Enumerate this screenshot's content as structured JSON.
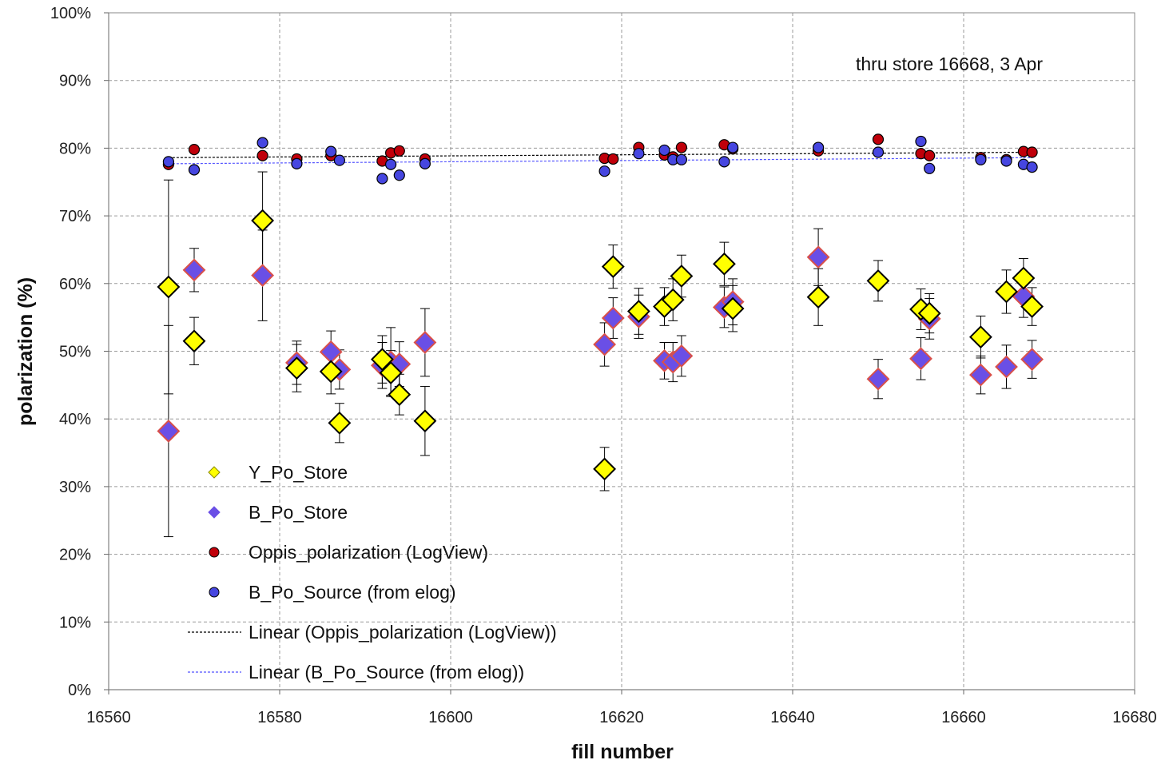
{
  "chart_data": {
    "type": "scatter",
    "xlabel": "fill number",
    "ylabel": "polarization (%)",
    "annotation": "thru store 16668, 3 Apr",
    "xlim": [
      16560,
      16680
    ],
    "ylim": [
      0,
      100
    ],
    "x_ticks": [
      16560,
      16580,
      16600,
      16620,
      16640,
      16660,
      16680
    ],
    "y_ticks": [
      0,
      10,
      20,
      30,
      40,
      50,
      60,
      70,
      80,
      90,
      100
    ],
    "y_tick_labels": [
      "0%",
      "10%",
      "20%",
      "30%",
      "40%",
      "50%",
      "60%",
      "70%",
      "80%",
      "90%",
      "100%"
    ],
    "grid": true,
    "legend_position": "lower-left",
    "series": [
      {
        "name": "Y_Po_Store",
        "marker": "diamond",
        "color": "#FFFF00",
        "edge": "#000000",
        "points": [
          {
            "x": 16567,
            "y": 59.5,
            "err": 15.8
          },
          {
            "x": 16570,
            "y": 51.5,
            "err": 3.5
          },
          {
            "x": 16578,
            "y": 69.3,
            "err": 7.2
          },
          {
            "x": 16582,
            "y": 47.5,
            "err": 3.5
          },
          {
            "x": 16586,
            "y": 47.0,
            "err": 3.3
          },
          {
            "x": 16587,
            "y": 39.4,
            "err": 2.9
          },
          {
            "x": 16592,
            "y": 48.8,
            "err": 3.5
          },
          {
            "x": 16593,
            "y": 46.8,
            "err": 3.3
          },
          {
            "x": 16594,
            "y": 43.6,
            "err": 3.0
          },
          {
            "x": 16597,
            "y": 39.7,
            "err": 5.1
          },
          {
            "x": 16618,
            "y": 32.6,
            "err": 3.2
          },
          {
            "x": 16619,
            "y": 62.5,
            "err": 3.2
          },
          {
            "x": 16622,
            "y": 55.9,
            "err": 3.4
          },
          {
            "x": 16625,
            "y": 56.6,
            "err": 2.8
          },
          {
            "x": 16626,
            "y": 57.6,
            "err": 3.1
          },
          {
            "x": 16627,
            "y": 61.1,
            "err": 3.1
          },
          {
            "x": 16632,
            "y": 62.9,
            "err": 3.2
          },
          {
            "x": 16633,
            "y": 56.3,
            "err": 3.4
          },
          {
            "x": 16643,
            "y": 58.0,
            "err": 4.2
          },
          {
            "x": 16650,
            "y": 60.4,
            "err": 3.0
          },
          {
            "x": 16655,
            "y": 56.2,
            "err": 3.0
          },
          {
            "x": 16656,
            "y": 55.6,
            "err": 2.9
          },
          {
            "x": 16662,
            "y": 52.1,
            "err": 3.1
          },
          {
            "x": 16665,
            "y": 58.8,
            "err": 3.2
          },
          {
            "x": 16667,
            "y": 60.8,
            "err": 2.9
          },
          {
            "x": 16668,
            "y": 56.6,
            "err": 2.8
          }
        ]
      },
      {
        "name": "B_Po_Store",
        "marker": "diamond",
        "color": "#6A4FE6",
        "edge": "#D9504A",
        "points": [
          {
            "x": 16567,
            "y": 38.2,
            "err": 15.6
          },
          {
            "x": 16570,
            "y": 62.0,
            "err": 3.2
          },
          {
            "x": 16578,
            "y": 61.2,
            "err": 6.7
          },
          {
            "x": 16582,
            "y": 48.3,
            "err": 3.2
          },
          {
            "x": 16586,
            "y": 49.9,
            "err": 3.1
          },
          {
            "x": 16587,
            "y": 47.3,
            "err": 2.9
          },
          {
            "x": 16592,
            "y": 47.9,
            "err": 3.4
          },
          {
            "x": 16593,
            "y": 48.4,
            "err": 5.1
          },
          {
            "x": 16594,
            "y": 48.1,
            "err": 3.3
          },
          {
            "x": 16597,
            "y": 51.3,
            "err": 5.0
          },
          {
            "x": 16618,
            "y": 51.0,
            "err": 3.2
          },
          {
            "x": 16619,
            "y": 54.9,
            "err": 3.0
          },
          {
            "x": 16622,
            "y": 55.1,
            "err": 3.2
          },
          {
            "x": 16625,
            "y": 48.6,
            "err": 2.7
          },
          {
            "x": 16626,
            "y": 48.4,
            "err": 2.9
          },
          {
            "x": 16627,
            "y": 49.3,
            "err": 3.0
          },
          {
            "x": 16632,
            "y": 56.5,
            "err": 3.0
          },
          {
            "x": 16633,
            "y": 57.3,
            "err": 3.4
          },
          {
            "x": 16643,
            "y": 63.9,
            "err": 4.2
          },
          {
            "x": 16650,
            "y": 45.9,
            "err": 2.9
          },
          {
            "x": 16655,
            "y": 48.9,
            "err": 3.1
          },
          {
            "x": 16656,
            "y": 54.8,
            "err": 3.0
          },
          {
            "x": 16662,
            "y": 46.5,
            "err": 2.8
          },
          {
            "x": 16665,
            "y": 47.7,
            "err": 3.2
          },
          {
            "x": 16667,
            "y": 58.1,
            "err": 3.1
          },
          {
            "x": 16668,
            "y": 48.8,
            "err": 2.8
          }
        ]
      },
      {
        "name": "Oppis_polarization (LogView)",
        "marker": "circle",
        "color": "#C0000A",
        "edge": "#000000",
        "points": [
          {
            "x": 16567,
            "y": 77.6
          },
          {
            "x": 16570,
            "y": 79.8
          },
          {
            "x": 16578,
            "y": 78.9
          },
          {
            "x": 16582,
            "y": 78.4
          },
          {
            "x": 16586,
            "y": 78.9
          },
          {
            "x": 16592,
            "y": 78.1
          },
          {
            "x": 16593,
            "y": 79.3
          },
          {
            "x": 16594,
            "y": 79.6
          },
          {
            "x": 16597,
            "y": 78.4
          },
          {
            "x": 16618,
            "y": 78.5
          },
          {
            "x": 16619,
            "y": 78.4
          },
          {
            "x": 16622,
            "y": 80.1
          },
          {
            "x": 16625,
            "y": 79.0
          },
          {
            "x": 16626,
            "y": 78.7
          },
          {
            "x": 16627,
            "y": 80.1
          },
          {
            "x": 16632,
            "y": 80.5
          },
          {
            "x": 16633,
            "y": 79.9
          },
          {
            "x": 16643,
            "y": 79.6
          },
          {
            "x": 16650,
            "y": 81.3
          },
          {
            "x": 16655,
            "y": 79.2
          },
          {
            "x": 16656,
            "y": 78.9
          },
          {
            "x": 16662,
            "y": 78.6
          },
          {
            "x": 16665,
            "y": 78.3
          },
          {
            "x": 16667,
            "y": 79.5
          },
          {
            "x": 16668,
            "y": 79.4
          }
        ]
      },
      {
        "name": "B_Po_Source (from elog)",
        "marker": "circle",
        "color": "#4646E0",
        "edge": "#000000",
        "points": [
          {
            "x": 16567,
            "y": 78.0
          },
          {
            "x": 16570,
            "y": 76.8
          },
          {
            "x": 16578,
            "y": 80.8
          },
          {
            "x": 16582,
            "y": 77.7
          },
          {
            "x": 16586,
            "y": 79.5
          },
          {
            "x": 16587,
            "y": 78.2
          },
          {
            "x": 16592,
            "y": 75.5
          },
          {
            "x": 16593,
            "y": 77.6
          },
          {
            "x": 16594,
            "y": 76.0
          },
          {
            "x": 16597,
            "y": 77.7
          },
          {
            "x": 16618,
            "y": 76.6
          },
          {
            "x": 16622,
            "y": 79.2
          },
          {
            "x": 16625,
            "y": 79.7
          },
          {
            "x": 16626,
            "y": 78.3
          },
          {
            "x": 16627,
            "y": 78.3
          },
          {
            "x": 16632,
            "y": 78.0
          },
          {
            "x": 16633,
            "y": 80.1
          },
          {
            "x": 16643,
            "y": 80.1
          },
          {
            "x": 16650,
            "y": 79.4
          },
          {
            "x": 16655,
            "y": 81.0
          },
          {
            "x": 16656,
            "y": 77.0
          },
          {
            "x": 16662,
            "y": 78.3
          },
          {
            "x": 16665,
            "y": 78.1
          },
          {
            "x": 16667,
            "y": 77.6
          },
          {
            "x": 16668,
            "y": 77.2
          }
        ]
      }
    ],
    "trendlines": [
      {
        "name": "Linear (Oppis_polarization (LogView))",
        "color": "#000000",
        "x": [
          16567,
          16668
        ],
        "y": [
          78.6,
          79.4
        ]
      },
      {
        "name": "Linear (B_Po_Source (from elog))",
        "color": "#5555FF",
        "x": [
          16567,
          16668
        ],
        "y": [
          77.7,
          78.6
        ]
      }
    ]
  }
}
